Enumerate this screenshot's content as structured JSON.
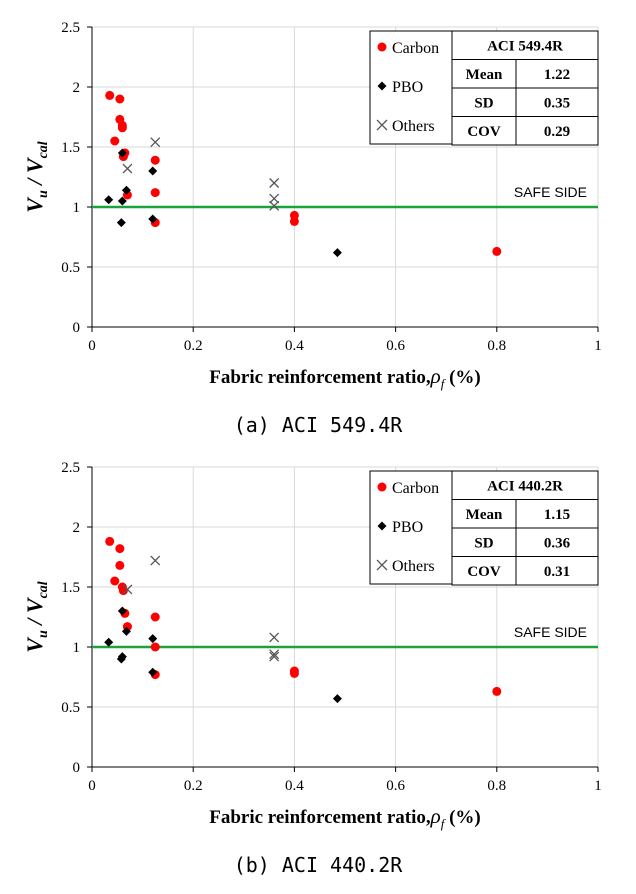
{
  "chart_data": [
    {
      "type": "scatter",
      "caption": "(a) ACI 549.4R",
      "xlabel": "Fabric reinforcement ratio,",
      "xlabel_symbol": "ρ",
      "xlabel_symbol_sub": "f",
      "xlabel_unit": "(%)",
      "ylabel": "V",
      "ylabel_sub": "u",
      "ylabel_sep": " / V",
      "ylabel_sub2": "cal",
      "xlim": [
        0,
        1
      ],
      "ylim": [
        0,
        2.5
      ],
      "xticks": [
        "0",
        "0.2",
        "0.4",
        "0.6",
        "0.8",
        "1"
      ],
      "yticks": [
        "0",
        "0.5",
        "1",
        "1.5",
        "2",
        "2.5"
      ],
      "grid": true,
      "reference_line": {
        "y": 1,
        "label": "SAFE SIDE",
        "color": "#1aa33a"
      },
      "legend_position": "top-right",
      "series": [
        {
          "name": "Carbon",
          "marker": "circle",
          "color": "#ff0000",
          "points": [
            [
              0.035,
              1.93
            ],
            [
              0.045,
              1.55
            ],
            [
              0.055,
              1.9
            ],
            [
              0.055,
              1.73
            ],
            [
              0.06,
              1.68
            ],
            [
              0.06,
              1.66
            ],
            [
              0.062,
              1.42
            ],
            [
              0.065,
              1.45
            ],
            [
              0.07,
              1.1
            ],
            [
              0.125,
              1.39
            ],
            [
              0.125,
              1.12
            ],
            [
              0.125,
              0.87
            ],
            [
              0.4,
              0.93
            ],
            [
              0.4,
              0.88
            ],
            [
              0.8,
              0.63
            ]
          ]
        },
        {
          "name": "PBO",
          "marker": "diamond",
          "color": "#000000",
          "points": [
            [
              0.033,
              1.06
            ],
            [
              0.058,
              0.87
            ],
            [
              0.06,
              1.45
            ],
            [
              0.06,
              1.05
            ],
            [
              0.068,
              1.14
            ],
            [
              0.12,
              1.3
            ],
            [
              0.12,
              0.9
            ],
            [
              0.485,
              0.62
            ]
          ]
        },
        {
          "name": "Others",
          "marker": "x",
          "color": "#555555",
          "points": [
            [
              0.07,
              1.32
            ],
            [
              0.125,
              1.54
            ],
            [
              0.36,
              1.2
            ],
            [
              0.36,
              1.07
            ],
            [
              0.36,
              1.01
            ]
          ]
        }
      ],
      "stats_table": {
        "title": "ACI 549.4R",
        "rows": [
          [
            "Mean",
            "1.22"
          ],
          [
            "SD",
            "0.35"
          ],
          [
            "COV",
            "0.29"
          ]
        ]
      }
    },
    {
      "type": "scatter",
      "caption": "(b) ACI 440.2R",
      "xlabel": "Fabric reinforcement ratio,",
      "xlabel_symbol": "ρ",
      "xlabel_symbol_sub": "f",
      "xlabel_unit": "(%)",
      "ylabel": "V",
      "ylabel_sub": "u",
      "ylabel_sep": " / V",
      "ylabel_sub2": "cal",
      "xlim": [
        0,
        1
      ],
      "ylim": [
        0,
        2.5
      ],
      "xticks": [
        "0",
        "0.2",
        "0.4",
        "0.6",
        "0.8",
        "1"
      ],
      "yticks": [
        "0",
        "0.5",
        "1",
        "1.5",
        "2",
        "2.5"
      ],
      "grid": true,
      "reference_line": {
        "y": 1,
        "label": "SAFE SIDE",
        "color": "#1aa33a"
      },
      "legend_position": "top-right",
      "series": [
        {
          "name": "Carbon",
          "marker": "circle",
          "color": "#ff0000",
          "points": [
            [
              0.035,
              1.88
            ],
            [
              0.045,
              1.55
            ],
            [
              0.055,
              1.82
            ],
            [
              0.055,
              1.68
            ],
            [
              0.06,
              1.5
            ],
            [
              0.062,
              1.47
            ],
            [
              0.065,
              1.28
            ],
            [
              0.07,
              1.17
            ],
            [
              0.125,
              1.25
            ],
            [
              0.125,
              1.0
            ],
            [
              0.125,
              0.77
            ],
            [
              0.4,
              0.8
            ],
            [
              0.4,
              0.78
            ],
            [
              0.8,
              0.63
            ]
          ]
        },
        {
          "name": "PBO",
          "marker": "diamond",
          "color": "#000000",
          "points": [
            [
              0.033,
              1.04
            ],
            [
              0.058,
              0.9
            ],
            [
              0.06,
              0.92
            ],
            [
              0.06,
              1.3
            ],
            [
              0.068,
              1.13
            ],
            [
              0.12,
              1.07
            ],
            [
              0.12,
              0.79
            ],
            [
              0.485,
              0.57
            ]
          ]
        },
        {
          "name": "Others",
          "marker": "x",
          "color": "#555555",
          "points": [
            [
              0.07,
              1.48
            ],
            [
              0.125,
              1.72
            ],
            [
              0.36,
              1.08
            ],
            [
              0.36,
              0.94
            ],
            [
              0.36,
              0.92
            ]
          ]
        }
      ],
      "stats_table": {
        "title": "ACI 440.2R",
        "rows": [
          [
            "Mean",
            "1.15"
          ],
          [
            "SD",
            "0.36"
          ],
          [
            "COV",
            "0.31"
          ]
        ]
      }
    }
  ]
}
